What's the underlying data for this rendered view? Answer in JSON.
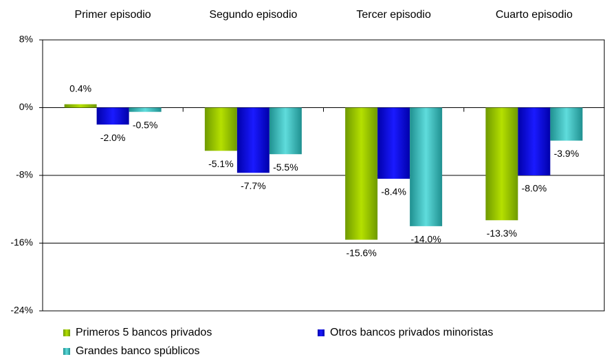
{
  "chart_data": {
    "type": "bar",
    "categories": [
      "Primer episodio",
      "Segundo episodio",
      "Tercer episodio",
      "Cuarto episodio"
    ],
    "series": [
      {
        "name": "Primeros 5 bancos privados",
        "color": "#8fbc00",
        "values": [
          0.4,
          -5.1,
          -15.6,
          -13.3
        ],
        "value_labels": [
          "0.4%",
          "-5.1%",
          "-15.6%",
          "-13.3%"
        ]
      },
      {
        "name": "Otros bancos privados minoristas",
        "color": "#0000ee",
        "values": [
          -2.0,
          -7.7,
          -8.4,
          -8.0
        ],
        "value_labels": [
          "-2.0%",
          "-7.7%",
          "-8.4%",
          "-8.0%"
        ]
      },
      {
        "name": "Grandes banco spúblicos",
        "color": "#2fb5b5",
        "values": [
          -0.5,
          -5.5,
          -14.0,
          -3.9
        ],
        "value_labels": [
          "-0.5%",
          "-5.5%",
          "-14.0%",
          "-3.9%"
        ]
      }
    ],
    "ylim": [
      -24,
      8
    ],
    "yticks": [
      {
        "value": -24,
        "label": "-24%"
      },
      {
        "value": -16,
        "label": "-16%"
      },
      {
        "value": -8,
        "label": "-8%"
      },
      {
        "value": 0,
        "label": "0%"
      },
      {
        "value": 8,
        "label": "8%"
      }
    ],
    "grid": true,
    "legend": "bottom"
  }
}
